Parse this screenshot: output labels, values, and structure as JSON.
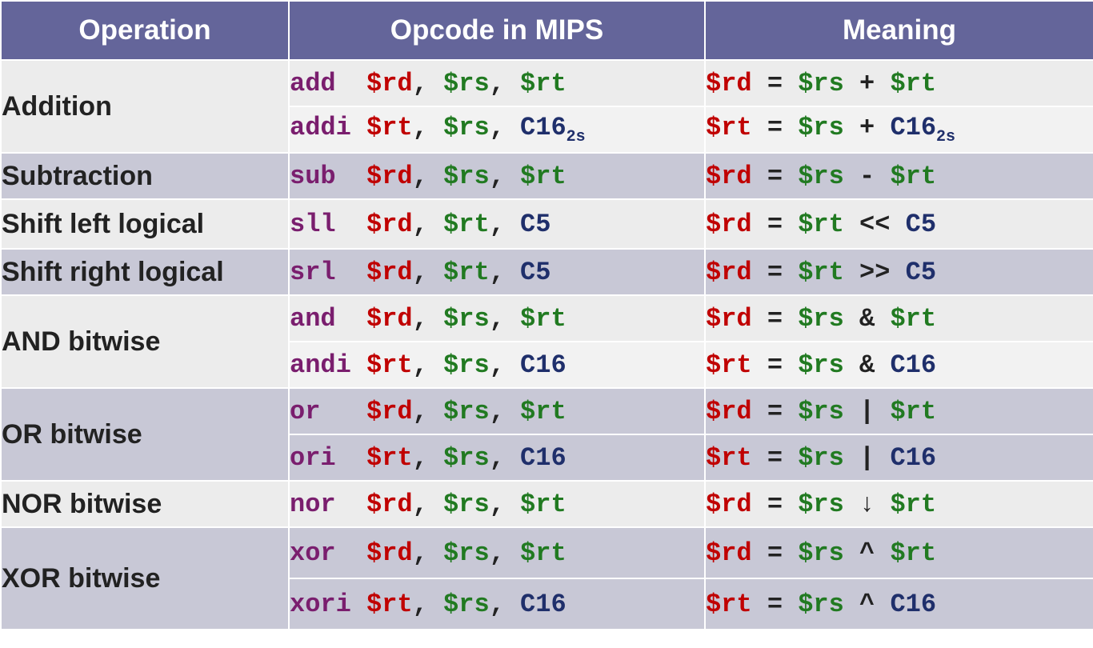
{
  "header": {
    "operation": "Operation",
    "opcode": "Opcode in MIPS",
    "meaning": "Meaning"
  },
  "rows": [
    {
      "operation": "Addition",
      "instructions": [
        {
          "mnemonic": "add ",
          "a1": "$rd",
          "a2": "$rs",
          "a3": "$rt",
          "m_lhs": "$rd",
          "m_src": "$rs",
          "m_op": "+",
          "m_rhs": "$rt"
        },
        {
          "mnemonic": "addi",
          "a1": "$rt",
          "a2": "$rs",
          "a3": "C16",
          "a3_sub": "2s",
          "m_lhs": "$rt",
          "m_src": "$rs",
          "m_op": "+",
          "m_rhs": "C16",
          "m_rhs_sub": "2s"
        }
      ]
    },
    {
      "operation": "Subtraction",
      "instructions": [
        {
          "mnemonic": "sub ",
          "a1": "$rd",
          "a2": "$rs",
          "a3": "$rt",
          "m_lhs": "$rd",
          "m_src": "$rs",
          "m_op": "-",
          "m_rhs": "$rt"
        }
      ]
    },
    {
      "operation": "Shift left logical",
      "instructions": [
        {
          "mnemonic": "sll ",
          "a1": "$rd",
          "a2": "$rt",
          "a3": "C5",
          "m_lhs": "$rd",
          "m_src": "$rt",
          "m_op": "<<",
          "m_rhs": "C5"
        }
      ]
    },
    {
      "operation": "Shift right logical",
      "instructions": [
        {
          "mnemonic": "srl ",
          "a1": "$rd",
          "a2": "$rt",
          "a3": "C5",
          "m_lhs": "$rd",
          "m_src": "$rt",
          "m_op": ">>",
          "m_rhs": "C5"
        }
      ]
    },
    {
      "operation": "AND bitwise",
      "instructions": [
        {
          "mnemonic": "and ",
          "a1": "$rd",
          "a2": "$rs",
          "a3": "$rt",
          "m_lhs": "$rd",
          "m_src": "$rs",
          "m_op": "&",
          "m_rhs": "$rt"
        },
        {
          "mnemonic": "andi",
          "a1": "$rt",
          "a2": "$rs",
          "a3": "C16",
          "m_lhs": "$rt",
          "m_src": "$rs",
          "m_op": "&",
          "m_rhs": "C16"
        }
      ]
    },
    {
      "operation": "OR bitwise",
      "instructions": [
        {
          "mnemonic": "or  ",
          "a1": "$rd",
          "a2": "$rs",
          "a3": "$rt",
          "m_lhs": "$rd",
          "m_src": "$rs",
          "m_op": "|",
          "m_rhs": "$rt"
        },
        {
          "mnemonic": "ori ",
          "a1": "$rt",
          "a2": "$rs",
          "a3": "C16",
          "m_lhs": "$rt",
          "m_src": "$rs",
          "m_op": "|",
          "m_rhs": "C16"
        }
      ]
    },
    {
      "operation": "NOR bitwise",
      "instructions": [
        {
          "mnemonic": "nor ",
          "a1": "$rd",
          "a2": "$rs",
          "a3": "$rt",
          "m_lhs": "$rd",
          "m_src": "$rs",
          "m_op": "↓",
          "m_rhs": "$rt"
        }
      ]
    },
    {
      "operation": "XOR bitwise",
      "instructions": [
        {
          "mnemonic": "xor ",
          "a1": "$rd",
          "a2": "$rs",
          "a3": "$rt",
          "m_lhs": "$rd",
          "m_src": "$rs",
          "m_op": "^",
          "m_rhs": "$rt"
        },
        {
          "mnemonic": "xori",
          "a1": "$rt",
          "a2": "$rs",
          "a3": "C16",
          "m_lhs": "$rt",
          "m_src": "$rs",
          "m_op": "^",
          "m_rhs": "C16"
        }
      ]
    }
  ],
  "punctuation": {
    "comma": ", ",
    "equals": " = "
  },
  "colors": {
    "header_bg": "#64659a",
    "mnemonic": "#7a1e6e",
    "dest_register": "#c00000",
    "source_register": "#217a21",
    "constant": "#1f2f6b"
  }
}
